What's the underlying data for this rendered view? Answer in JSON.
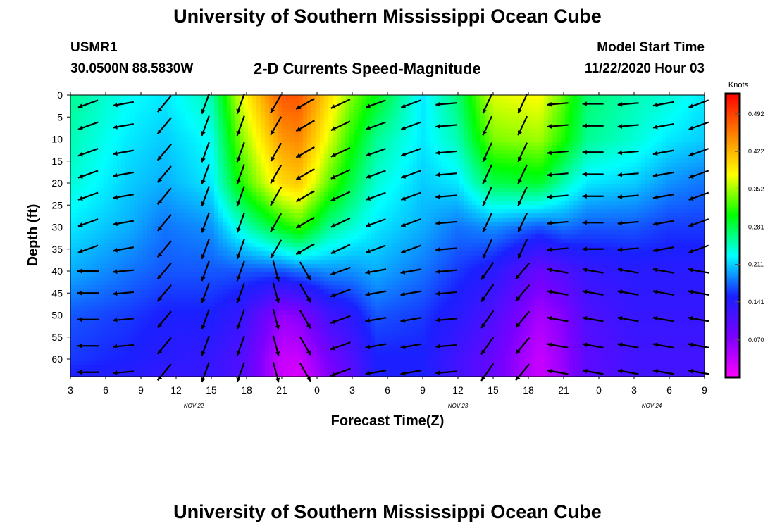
{
  "header": {
    "title": "University of Southern Mississippi Ocean Cube",
    "station": "USMR1",
    "coords": "30.0500N 88.5830W",
    "subtitle": "2-D Currents Speed-Magnitude",
    "model_label": "Model Start Time",
    "model_time": "11/22/2020 Hour 03"
  },
  "footer": {
    "title": "University of Southern Mississippi Ocean Cube"
  },
  "chart_data": {
    "type": "heatmap",
    "xlabel": "Forecast Time(Z)",
    "ylabel": "Depth (ft)",
    "x_ticks": [
      "3",
      "6",
      "9",
      "12",
      "15",
      "18",
      "21",
      "0",
      "3",
      "6",
      "9",
      "12",
      "15",
      "18",
      "21",
      "0",
      "3",
      "6",
      "9"
    ],
    "x_date_labels": [
      {
        "text": "NOV 22",
        "tick_index": 3.5
      },
      {
        "text": "NOV 23",
        "tick_index": 11
      },
      {
        "text": "NOV 24",
        "tick_index": 16.5
      }
    ],
    "y_ticks": [
      0,
      5,
      10,
      15,
      20,
      25,
      30,
      35,
      40,
      45,
      50,
      55,
      60
    ],
    "ylim": [
      0,
      64
    ],
    "colorbar": {
      "unit": "Knots",
      "ticks": [
        "0.492",
        "0.422",
        "0.352",
        "0.281",
        "0.211",
        "0.141",
        "0.070"
      ],
      "range": [
        0.0,
        0.53
      ],
      "stops": [
        "#ff00ff",
        "#7a00ff",
        "#1a20ff",
        "#00ffff",
        "#00ff00",
        "#ffff00",
        "#ff8000",
        "#ff0000"
      ]
    },
    "speed_keyframes": {
      "times_h": [
        0,
        5,
        8,
        12,
        14.5,
        18,
        19.5,
        22,
        24,
        26,
        30,
        33,
        36,
        40,
        42,
        44,
        48,
        51,
        54
      ],
      "depths_ft": [
        0,
        10,
        20,
        30,
        40,
        50,
        60,
        64
      ],
      "values": [
        [
          0.26,
          0.25,
          0.24,
          0.22,
          0.2,
          0.17,
          0.16,
          0.15
        ],
        [
          0.23,
          0.22,
          0.21,
          0.2,
          0.18,
          0.16,
          0.15,
          0.14
        ],
        [
          0.22,
          0.21,
          0.2,
          0.18,
          0.17,
          0.15,
          0.14,
          0.13
        ],
        [
          0.25,
          0.23,
          0.22,
          0.19,
          0.17,
          0.15,
          0.13,
          0.13
        ],
        [
          0.37,
          0.34,
          0.31,
          0.24,
          0.17,
          0.13,
          0.11,
          0.11
        ],
        [
          0.48,
          0.44,
          0.4,
          0.3,
          0.17,
          0.06,
          0.03,
          0.03
        ],
        [
          0.48,
          0.45,
          0.41,
          0.32,
          0.18,
          0.07,
          0.03,
          0.02
        ],
        [
          0.4,
          0.37,
          0.33,
          0.26,
          0.19,
          0.12,
          0.08,
          0.07
        ],
        [
          0.34,
          0.31,
          0.28,
          0.24,
          0.19,
          0.14,
          0.11,
          0.1
        ],
        [
          0.3,
          0.26,
          0.24,
          0.22,
          0.2,
          0.17,
          0.15,
          0.15
        ],
        [
          0.22,
          0.22,
          0.21,
          0.2,
          0.18,
          0.16,
          0.15,
          0.15
        ],
        [
          0.27,
          0.25,
          0.22,
          0.18,
          0.16,
          0.14,
          0.12,
          0.12
        ],
        [
          0.37,
          0.34,
          0.28,
          0.19,
          0.14,
          0.11,
          0.09,
          0.09
        ],
        [
          0.38,
          0.35,
          0.29,
          0.17,
          0.09,
          0.05,
          0.03,
          0.03
        ],
        [
          0.33,
          0.31,
          0.25,
          0.18,
          0.11,
          0.07,
          0.06,
          0.06
        ],
        [
          0.27,
          0.26,
          0.22,
          0.17,
          0.13,
          0.11,
          0.1,
          0.1
        ],
        [
          0.25,
          0.24,
          0.21,
          0.17,
          0.14,
          0.13,
          0.12,
          0.12
        ],
        [
          0.24,
          0.22,
          0.19,
          0.16,
          0.14,
          0.13,
          0.12,
          0.12
        ],
        [
          0.22,
          0.21,
          0.18,
          0.16,
          0.14,
          0.13,
          0.12,
          0.12
        ]
      ]
    },
    "vector_times_h": [
      1.5,
      4.5,
      8,
      11.5,
      14.5,
      17.5,
      20,
      23,
      26,
      29,
      32,
      35.5,
      38.5,
      41.5,
      44.5,
      47.5,
      50.5,
      53.5
    ],
    "vector_depths_ft": [
      2,
      7,
      13,
      18,
      23,
      29,
      35,
      40,
      45,
      51,
      57,
      63
    ],
    "vector_angles_deg": [
      160,
      170,
      130,
      110,
      110,
      120,
      150,
      155,
      160,
      160,
      175,
      115,
      115,
      175,
      180,
      175,
      170,
      160
    ],
    "vector_lower_angles_deg": [
      180,
      175,
      130,
      110,
      110,
      75,
      60,
      160,
      170,
      170,
      175,
      125,
      130,
      190,
      190,
      190,
      190,
      190
    ]
  }
}
